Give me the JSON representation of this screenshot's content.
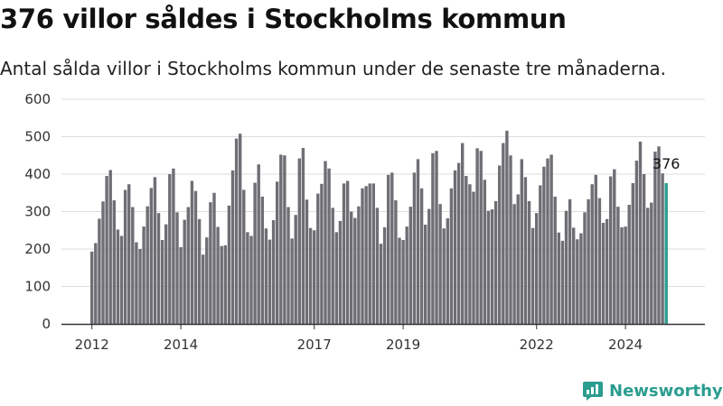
{
  "title": "376 villor såldes i Stockholms kommun",
  "subtitle": "Antal sålda villor i Stockholms kommun under de senaste tre månaderna.",
  "brand": {
    "name": "Newsworthy",
    "icon": "newsworthy-logo-icon"
  },
  "colors": {
    "bar": "#6f6e74",
    "highlight": "#2a9d8f",
    "grid": "#dddddd",
    "axis": "#333333"
  },
  "chart_data": {
    "type": "bar",
    "x_start": "2012-01",
    "x_ticks": [
      "2012",
      "2014",
      "2017",
      "2019",
      "2022",
      "2024"
    ],
    "y_ticks": [
      "0",
      "100",
      "200",
      "300",
      "400",
      "500",
      "600"
    ],
    "ylim": [
      0,
      600
    ],
    "annotation": "376",
    "grid": true,
    "values": [
      193,
      216,
      281,
      327,
      395,
      411,
      330,
      252,
      235,
      358,
      373,
      312,
      218,
      200,
      260,
      314,
      363,
      392,
      296,
      224,
      266,
      400,
      415,
      298,
      205,
      278,
      312,
      382,
      355,
      280,
      185,
      231,
      325,
      350,
      259,
      208,
      210,
      316,
      410,
      495,
      508,
      358,
      245,
      235,
      377,
      426,
      340,
      255,
      225,
      277,
      380,
      452,
      450,
      312,
      228,
      291,
      442,
      470,
      332,
      256,
      250,
      348,
      374,
      435,
      415,
      310,
      245,
      275,
      375,
      382,
      300,
      283,
      314,
      362,
      368,
      375,
      375,
      310,
      214,
      258,
      398,
      404,
      330,
      230,
      224,
      260,
      313,
      404,
      440,
      362,
      265,
      307,
      456,
      462,
      320,
      255,
      282,
      362,
      410,
      430,
      483,
      395,
      373,
      353,
      469,
      462,
      385,
      302,
      306,
      328,
      423,
      483,
      516,
      450,
      320,
      346,
      440,
      392,
      328,
      256,
      296,
      370,
      420,
      442,
      452,
      340,
      244,
      222,
      302,
      333,
      257,
      226,
      242,
      298,
      333,
      373,
      398,
      336,
      270,
      280,
      394,
      413,
      313,
      258,
      260,
      318,
      376,
      436,
      487,
      400,
      310,
      324,
      460,
      474,
      402,
      376
    ]
  }
}
